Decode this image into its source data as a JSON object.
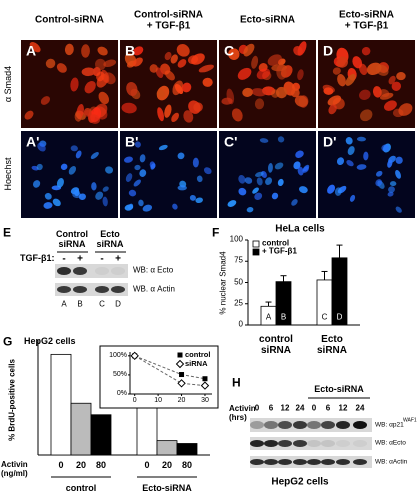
{
  "figure": {
    "columns": [
      [
        "Control-siRNA"
      ],
      [
        "Control-siRNA",
        "+ TGF-β1"
      ],
      [
        "Ecto-siRNA"
      ],
      [
        "Ecto-siRNA",
        "+ TGF-β1"
      ]
    ],
    "row_labels": [
      "α Smad4",
      "Hoechst"
    ],
    "image_letters": [
      [
        "A",
        "B",
        "C",
        "D"
      ],
      [
        "A'",
        "B'",
        "C'",
        "D'"
      ]
    ],
    "panel_e": {
      "letter": "E",
      "groups": [
        "Control siRNA",
        "Ecto siRNA"
      ],
      "treatment_label": "TGF-β1:",
      "treatment_signs": [
        "-",
        "+",
        "-",
        "+"
      ],
      "blots": [
        "WB: α Ecto",
        "WB. α Actin"
      ],
      "lanes": [
        "A",
        "B",
        "C",
        "D"
      ]
    },
    "panel_h": {
      "letter": "H",
      "group": "Ecto-siRNA",
      "x_label": "Activin (hrs)",
      "lanes": [
        "0",
        "6",
        "12",
        "24",
        "0",
        "6",
        "12",
        "24"
      ],
      "blots": [
        "WB: αp21",
        "WB: αEcto",
        "WB: αActin"
      ],
      "blot_sup": "WAF1",
      "caption": "HepG2 cells"
    }
  },
  "chart_data": [
    {
      "type": "bar",
      "letter": "F",
      "title": "HeLa cells",
      "y_label": "% nuclear Smad4",
      "categories": [
        "control siRNA",
        "Ecto siRNA"
      ],
      "series": [
        {
          "name": "control",
          "color": "#ffffff",
          "values": [
            22,
            53
          ],
          "errors": [
            5,
            10
          ],
          "bar_labels": [
            "A",
            "C"
          ]
        },
        {
          "name": "+ TGF-β1",
          "color": "#000000",
          "values": [
            51,
            79
          ],
          "errors": [
            7,
            15
          ],
          "bar_labels": [
            "B",
            "D"
          ]
        }
      ],
      "ylim": [
        0,
        100
      ],
      "yticks": [
        0,
        25,
        50,
        75,
        100
      ],
      "legend": "top-left"
    },
    {
      "type": "bar",
      "letter": "G",
      "title": "HepG2 cells",
      "y_label": "% BrdU-positive cells",
      "x_label": "Activin (ng/ml)",
      "categories": [
        "control",
        "Ecto-siRNA"
      ],
      "series": [
        {
          "name": "0",
          "color": "#ffffff",
          "values": [
            35,
            18
          ]
        },
        {
          "name": "20",
          "color": "#bbbbbb",
          "values": [
            18,
            5
          ]
        },
        {
          "name": "80",
          "color": "#000000",
          "values": [
            14,
            4
          ]
        }
      ],
      "ylim": [
        0,
        40
      ]
    },
    {
      "type": "line",
      "x": [
        0,
        20,
        30
      ],
      "series": [
        {
          "name": "control",
          "color": "#000000",
          "marker": "square",
          "values": [
            100,
            51,
            40
          ]
        },
        {
          "name": "siRNA",
          "color": "#000000",
          "marker": "diamond",
          "values": [
            100,
            28,
            22
          ]
        }
      ],
      "xlim": [
        -2,
        33
      ],
      "xticks": [
        0,
        10,
        20,
        30
      ],
      "ylim": [
        0,
        110
      ],
      "yticks": [
        {
          "value": 0,
          "label": "0%"
        },
        {
          "value": 50,
          "label": "50%"
        },
        {
          "value": 100,
          "label": "100%"
        }
      ],
      "legend": "top-right"
    }
  ]
}
